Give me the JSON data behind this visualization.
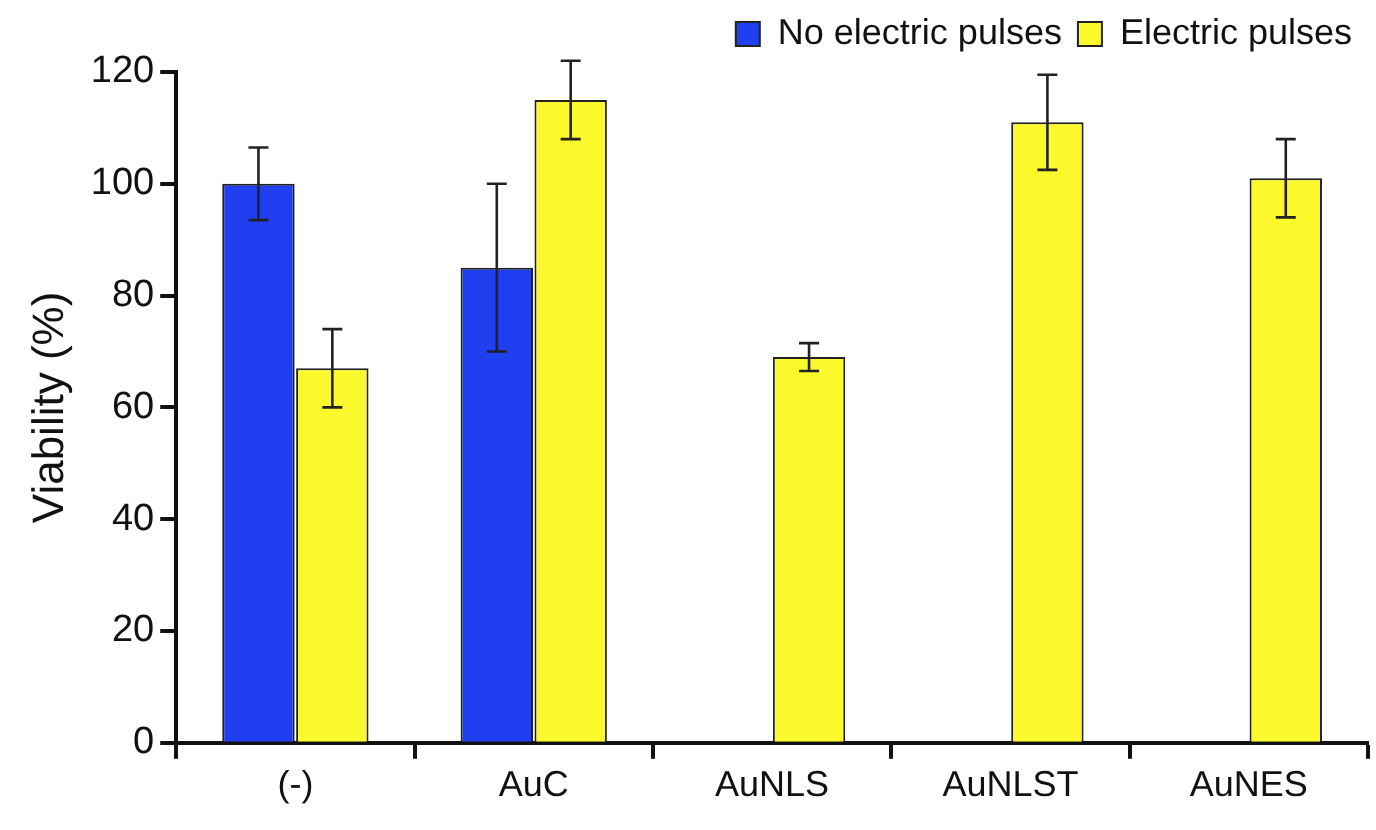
{
  "chart_data": {
    "type": "bar",
    "ylabel": "Viability (%)",
    "categories": [
      "(-)",
      "AuC",
      "AuNLS",
      "AuNLST",
      "AuNES"
    ],
    "series": [
      {
        "name": "No electric pulses",
        "color": "#1f3ff0",
        "values": [
          100,
          85,
          null,
          null,
          null
        ],
        "errors": [
          6.5,
          15,
          null,
          null,
          null
        ]
      },
      {
        "name": "Electric pulses",
        "color": "#fbf82c",
        "values": [
          67,
          115,
          69,
          111,
          101
        ],
        "errors": [
          7,
          7,
          2.5,
          8.5,
          7
        ]
      }
    ],
    "ylim": [
      0,
      120
    ],
    "yticks": [
      0,
      20,
      40,
      60,
      80,
      100,
      120
    ],
    "grid": false,
    "legend": "top right"
  }
}
